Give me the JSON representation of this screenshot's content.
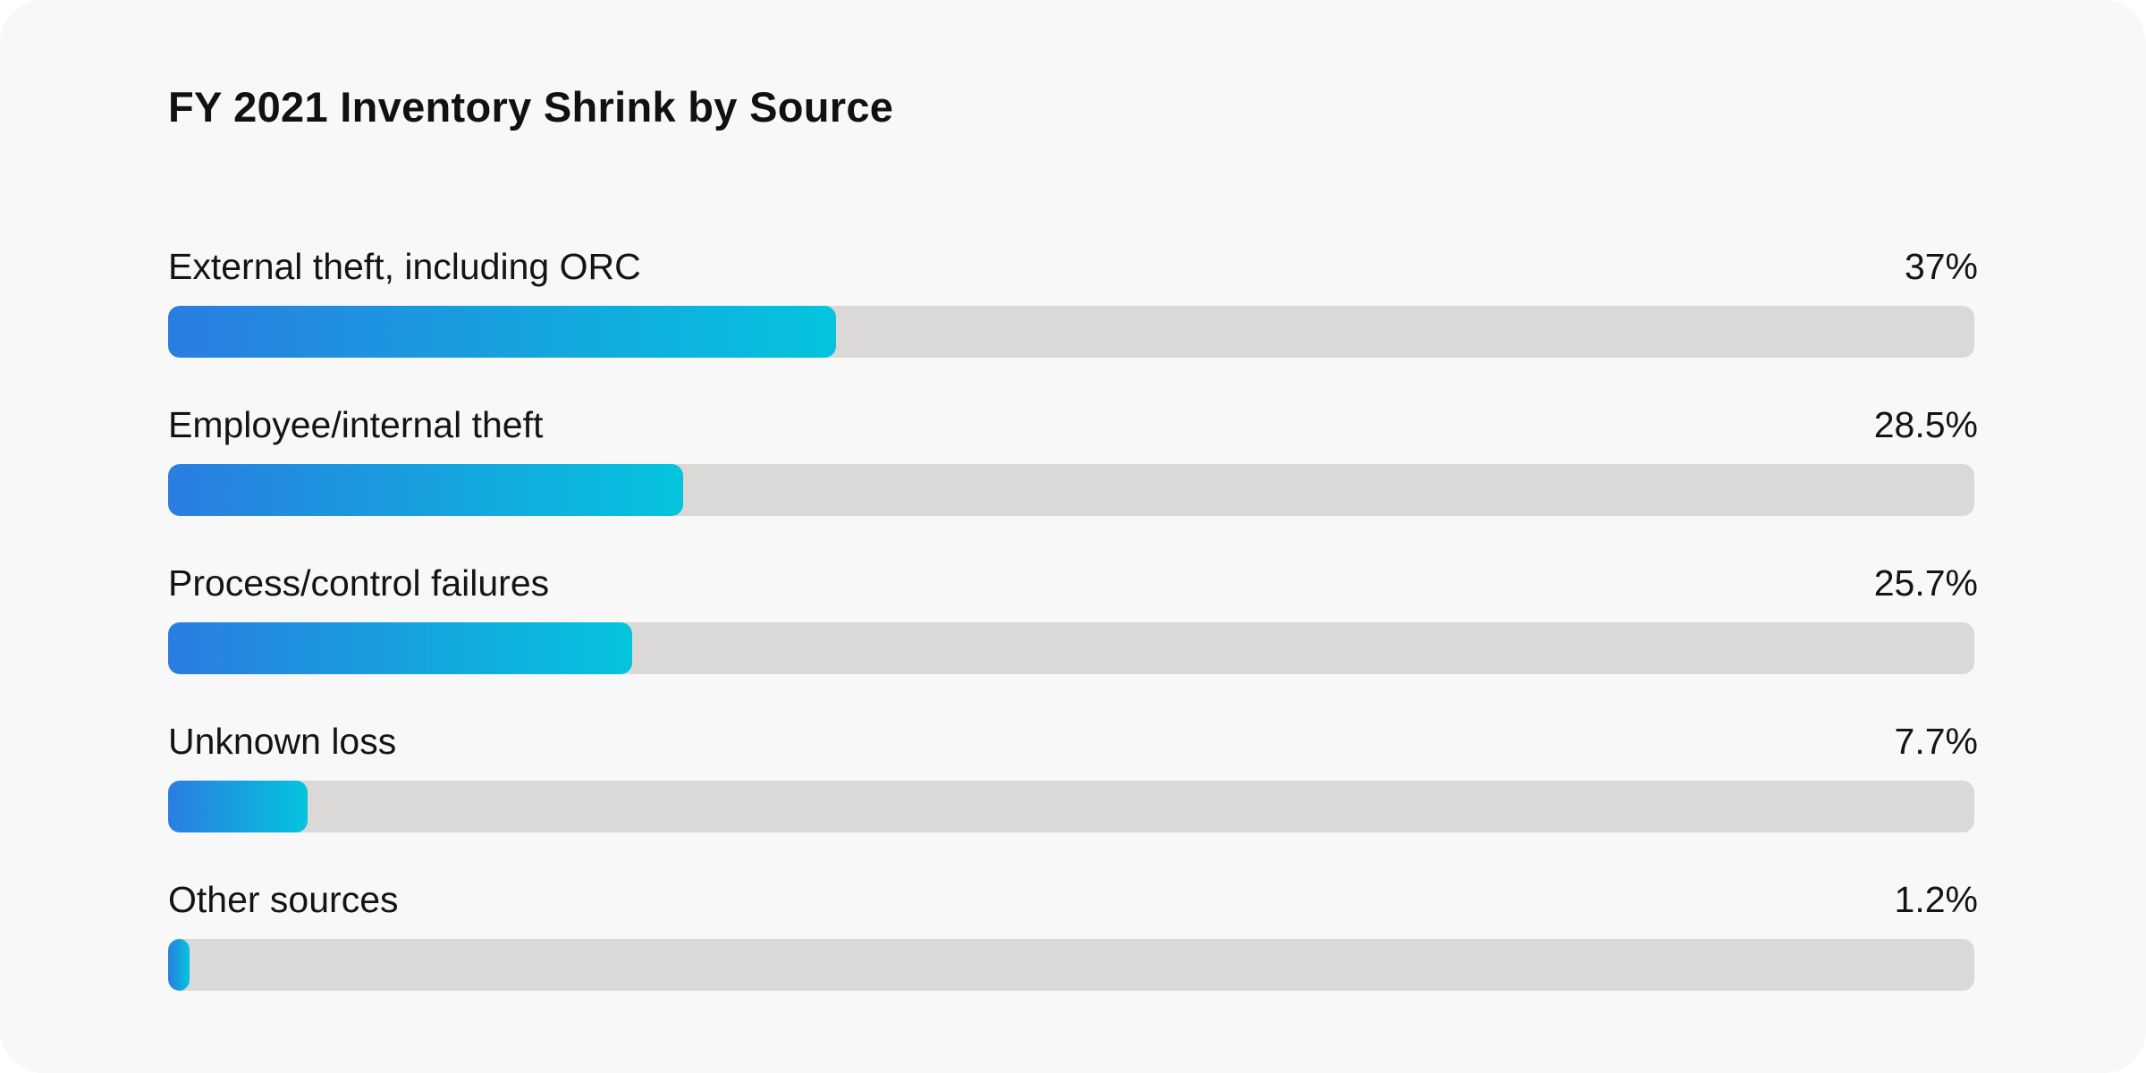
{
  "chart_data": {
    "type": "bar",
    "orientation": "horizontal",
    "title": "FY 2021 Inventory Shrink by Source",
    "categories": [
      "External theft, including ORC",
      "Employee/internal theft",
      "Process/control failures",
      "Unknown loss",
      "Other sources"
    ],
    "values": [
      37,
      28.5,
      25.7,
      7.7,
      1.2
    ],
    "value_labels": [
      "37%",
      "28.5%",
      "25.7%",
      "7.7%",
      "1.2%"
    ],
    "xlim": [
      0,
      100
    ],
    "grid": false,
    "colors": {
      "bar_gradient_start": "#2a7de1",
      "bar_gradient_end": "#04c4dd",
      "track": "#dad9d8",
      "background": "#f8f8f8"
    }
  }
}
